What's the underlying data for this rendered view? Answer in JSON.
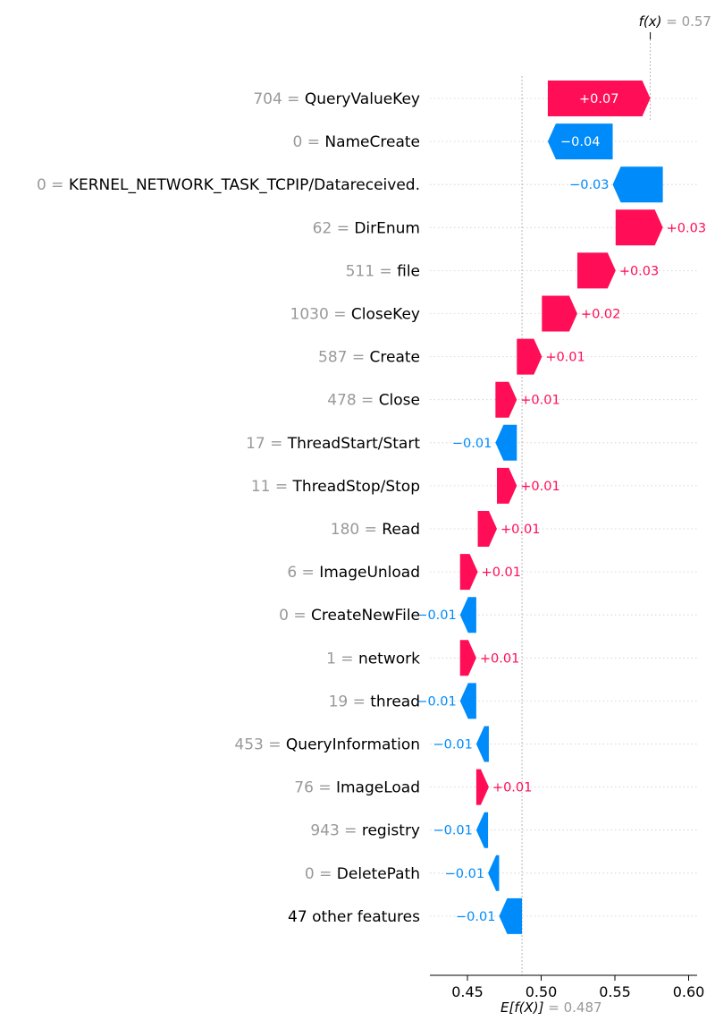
{
  "chart_data": {
    "type": "waterfall",
    "title": "",
    "base_value": 0.487,
    "base_value_label": {
      "expr": "E[f(X)]",
      "value": "0.487"
    },
    "output_value": 0.574,
    "output_value_label": {
      "expr": "f(x)",
      "value": "0.57"
    },
    "xlim": [
      0.425,
      0.605
    ],
    "x_ticks": [
      {
        "value": 0.45,
        "label": "0.45"
      },
      {
        "value": 0.5,
        "label": "0.50"
      },
      {
        "value": 0.55,
        "label": "0.55"
      },
      {
        "value": 0.6,
        "label": "0.60"
      }
    ],
    "colors": {
      "positive": "#ff0d57",
      "negative": "#008bfb",
      "axis": "#000000",
      "muted": "#999999",
      "grid": "#cccccc"
    },
    "features": [
      {
        "value": "704",
        "name": "QueryValueKey",
        "shap": 0.07,
        "label": "+0.07",
        "start": 0.5045,
        "end": 0.574
      },
      {
        "value": "0",
        "name": "NameCreate",
        "shap": -0.04,
        "label": "−0.04",
        "start": 0.5485,
        "end": 0.5045
      },
      {
        "value": "0",
        "name": "KERNEL_NETWORK_TASK_TCPIP/Datareceived.",
        "shap": -0.03,
        "label": "−0.03",
        "start": 0.5825,
        "end": 0.5485
      },
      {
        "value": "62",
        "name": "DirEnum",
        "shap": 0.03,
        "label": "+0.03",
        "start": 0.5505,
        "end": 0.5825
      },
      {
        "value": "511",
        "name": "file",
        "shap": 0.03,
        "label": "+0.03",
        "start": 0.5245,
        "end": 0.5505
      },
      {
        "value": "1030",
        "name": "CloseKey",
        "shap": 0.02,
        "label": "+0.02",
        "start": 0.5005,
        "end": 0.5245
      },
      {
        "value": "587",
        "name": "Create",
        "shap": 0.01,
        "label": "+0.01",
        "start": 0.4835,
        "end": 0.5005
      },
      {
        "value": "478",
        "name": "Close",
        "shap": 0.01,
        "label": "+0.01",
        "start": 0.469,
        "end": 0.4835
      },
      {
        "value": "17",
        "name": "ThreadStart/Start",
        "shap": -0.01,
        "label": "−0.01",
        "start": 0.4835,
        "end": 0.469
      },
      {
        "value": "11",
        "name": "ThreadStop/Stop",
        "shap": 0.01,
        "label": "+0.01",
        "start": 0.47,
        "end": 0.4835
      },
      {
        "value": "180",
        "name": "Read",
        "shap": 0.01,
        "label": "+0.01",
        "start": 0.457,
        "end": 0.47
      },
      {
        "value": "6",
        "name": "ImageUnload",
        "shap": 0.01,
        "label": "+0.01",
        "start": 0.445,
        "end": 0.457
      },
      {
        "value": "0",
        "name": "CreateNewFile",
        "shap": -0.01,
        "label": "−0.01",
        "start": 0.456,
        "end": 0.445
      },
      {
        "value": "1",
        "name": "network",
        "shap": 0.01,
        "label": "+0.01",
        "start": 0.445,
        "end": 0.456
      },
      {
        "value": "19",
        "name": "thread",
        "shap": -0.01,
        "label": "−0.01",
        "start": 0.456,
        "end": 0.445
      },
      {
        "value": "453",
        "name": "QueryInformation",
        "shap": -0.01,
        "label": "−0.01",
        "start": 0.4645,
        "end": 0.456
      },
      {
        "value": "76",
        "name": "ImageLoad",
        "shap": 0.01,
        "label": "+0.01",
        "start": 0.456,
        "end": 0.4645
      },
      {
        "value": "943",
        "name": "registry",
        "shap": -0.01,
        "label": "−0.01",
        "start": 0.464,
        "end": 0.456
      },
      {
        "value": "0",
        "name": "DeletePath",
        "shap": -0.01,
        "label": "−0.01",
        "start": 0.4715,
        "end": 0.464
      },
      {
        "value": "",
        "name": "47 other features",
        "shap": -0.01,
        "label": "−0.01",
        "start": 0.487,
        "end": 0.4715
      }
    ]
  }
}
